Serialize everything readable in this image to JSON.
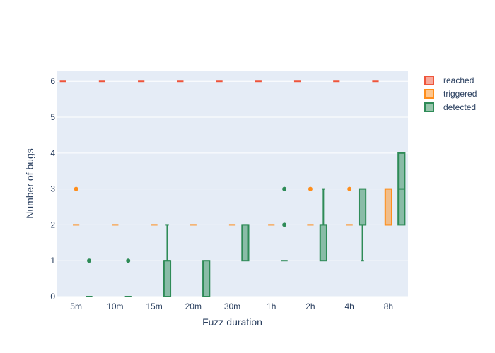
{
  "chart_data": {
    "type": "box",
    "xlabel": "Fuzz duration",
    "ylabel": "Number of bugs",
    "categories": [
      "5m",
      "10m",
      "15m",
      "20m",
      "30m",
      "1h",
      "2h",
      "4h",
      "8h"
    ],
    "ylim": [
      0,
      6.3
    ],
    "yticks": [
      0,
      1,
      2,
      3,
      4,
      5,
      6
    ],
    "grid": true,
    "legend_position": "top-right",
    "series": [
      {
        "name": "reached",
        "color": "#ef553b",
        "boxes": [
          {
            "min": 6,
            "q1": 6,
            "median": 6,
            "q3": 6,
            "max": 6,
            "outliers": []
          },
          {
            "min": 6,
            "q1": 6,
            "median": 6,
            "q3": 6,
            "max": 6,
            "outliers": []
          },
          {
            "min": 6,
            "q1": 6,
            "median": 6,
            "q3": 6,
            "max": 6,
            "outliers": []
          },
          {
            "min": 6,
            "q1": 6,
            "median": 6,
            "q3": 6,
            "max": 6,
            "outliers": []
          },
          {
            "min": 6,
            "q1": 6,
            "median": 6,
            "q3": 6,
            "max": 6,
            "outliers": []
          },
          {
            "min": 6,
            "q1": 6,
            "median": 6,
            "q3": 6,
            "max": 6,
            "outliers": []
          },
          {
            "min": 6,
            "q1": 6,
            "median": 6,
            "q3": 6,
            "max": 6,
            "outliers": []
          },
          {
            "min": 6,
            "q1": 6,
            "median": 6,
            "q3": 6,
            "max": 6,
            "outliers": []
          },
          {
            "min": 6,
            "q1": 6,
            "median": 6,
            "q3": 6,
            "max": 6,
            "outliers": []
          }
        ]
      },
      {
        "name": "triggered",
        "color": "#fe8e1c",
        "boxes": [
          {
            "min": 2,
            "q1": 2,
            "median": 2,
            "q3": 2,
            "max": 2,
            "outliers": [
              3
            ]
          },
          {
            "min": 2,
            "q1": 2,
            "median": 2,
            "q3": 2,
            "max": 2,
            "outliers": []
          },
          {
            "min": 2,
            "q1": 2,
            "median": 2,
            "q3": 2,
            "max": 2,
            "outliers": []
          },
          {
            "min": 2,
            "q1": 2,
            "median": 2,
            "q3": 2,
            "max": 2,
            "outliers": []
          },
          {
            "min": 2,
            "q1": 2,
            "median": 2,
            "q3": 2,
            "max": 2,
            "outliers": []
          },
          {
            "min": 2,
            "q1": 2,
            "median": 2,
            "q3": 2,
            "max": 2,
            "outliers": []
          },
          {
            "min": 2,
            "q1": 2,
            "median": 2,
            "q3": 2,
            "max": 2,
            "outliers": [
              3
            ]
          },
          {
            "min": 2,
            "q1": 2,
            "median": 2,
            "q3": 2,
            "max": 2,
            "outliers": [
              3
            ]
          },
          {
            "min": 2,
            "q1": 2,
            "median": 2,
            "q3": 3,
            "max": 3,
            "outliers": []
          }
        ]
      },
      {
        "name": "detected",
        "color": "#2e8b57",
        "boxes": [
          {
            "min": 0,
            "q1": 0,
            "median": 0,
            "q3": 0,
            "max": 0,
            "outliers": [
              1
            ]
          },
          {
            "min": 0,
            "q1": 0,
            "median": 0,
            "q3": 0,
            "max": 0,
            "outliers": [
              1
            ]
          },
          {
            "min": 0,
            "q1": 0,
            "median": 1,
            "q3": 1,
            "max": 2,
            "outliers": []
          },
          {
            "min": 0,
            "q1": 0,
            "median": 0,
            "q3": 1,
            "max": 1,
            "outliers": []
          },
          {
            "min": 1,
            "q1": 1,
            "median": 2,
            "q3": 2,
            "max": 2,
            "outliers": []
          },
          {
            "min": 1,
            "q1": 1,
            "median": 1,
            "q3": 1,
            "max": 1,
            "outliers": [
              2,
              3
            ]
          },
          {
            "min": 1,
            "q1": 1,
            "median": 2,
            "q3": 2,
            "max": 3,
            "outliers": []
          },
          {
            "min": 1,
            "q1": 2,
            "median": 2,
            "q3": 3,
            "max": 3,
            "outliers": []
          },
          {
            "min": 2,
            "q1": 2,
            "median": 3,
            "q3": 4,
            "max": 4,
            "outliers": []
          }
        ]
      }
    ]
  }
}
